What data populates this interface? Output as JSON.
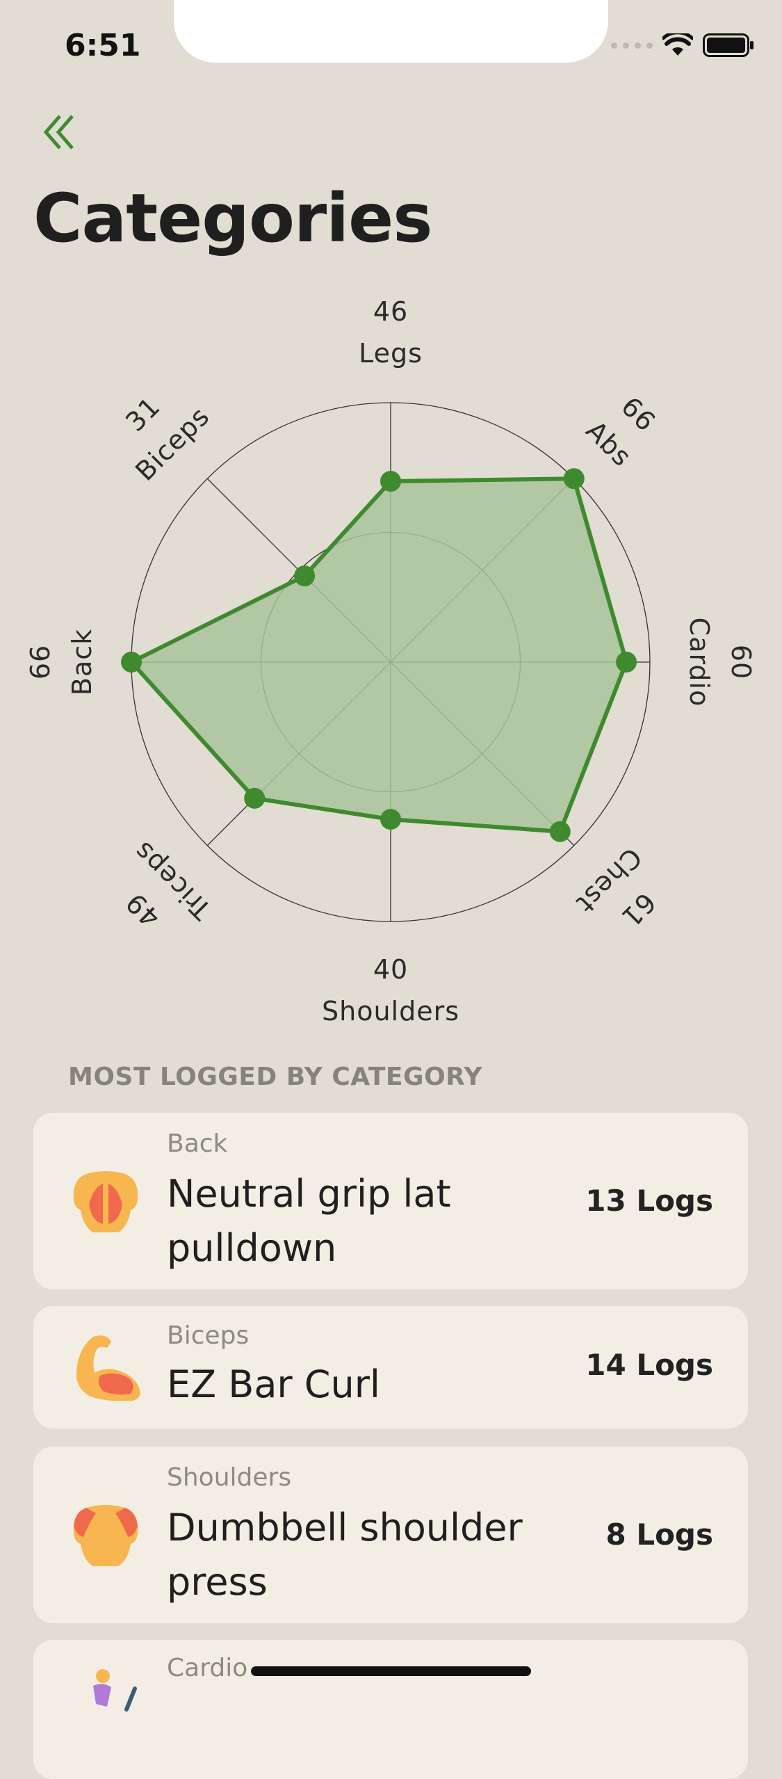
{
  "status": {
    "time": "6:51"
  },
  "header": {
    "title": "Categories"
  },
  "chart_data": {
    "type": "radar",
    "axes": [
      "Legs",
      "Abs",
      "Cardio",
      "Chest",
      "Shoulders",
      "Triceps",
      "Back",
      "Biceps"
    ],
    "values": [
      46,
      66,
      60,
      61,
      40,
      49,
      66,
      31
    ],
    "rmax": 66,
    "grid_rings": 2,
    "fill_color": "#a9c39a",
    "line_color": "#3f8a2e"
  },
  "section": {
    "title": "MOST LOGGED BY CATEGORY"
  },
  "items": [
    {
      "category": "Back",
      "name": "Neutral grip lat pulldown",
      "name_line1": "Neutral grip lat",
      "name_line2": "pulldown",
      "logs": "13 Logs",
      "icon": "back-muscle-icon"
    },
    {
      "category": "Biceps",
      "name": "EZ Bar Curl",
      "name_line1": "EZ Bar Curl",
      "name_line2": "",
      "logs": "14 Logs",
      "icon": "flexed-bicep-icon"
    },
    {
      "category": "Shoulders",
      "name": "Dumbbell shoulder press",
      "name_line1": "Dumbbell shoulder",
      "name_line2": "press",
      "logs": "8 Logs",
      "icon": "shoulder-muscle-icon"
    },
    {
      "category": "Cardio",
      "name": "",
      "name_line1": "",
      "name_line2": "",
      "logs": "",
      "icon": "runner-icon"
    }
  ],
  "colors": {
    "accent": "#3f8a2e",
    "background": "#e1ddd3",
    "card": "#f2eee4"
  }
}
